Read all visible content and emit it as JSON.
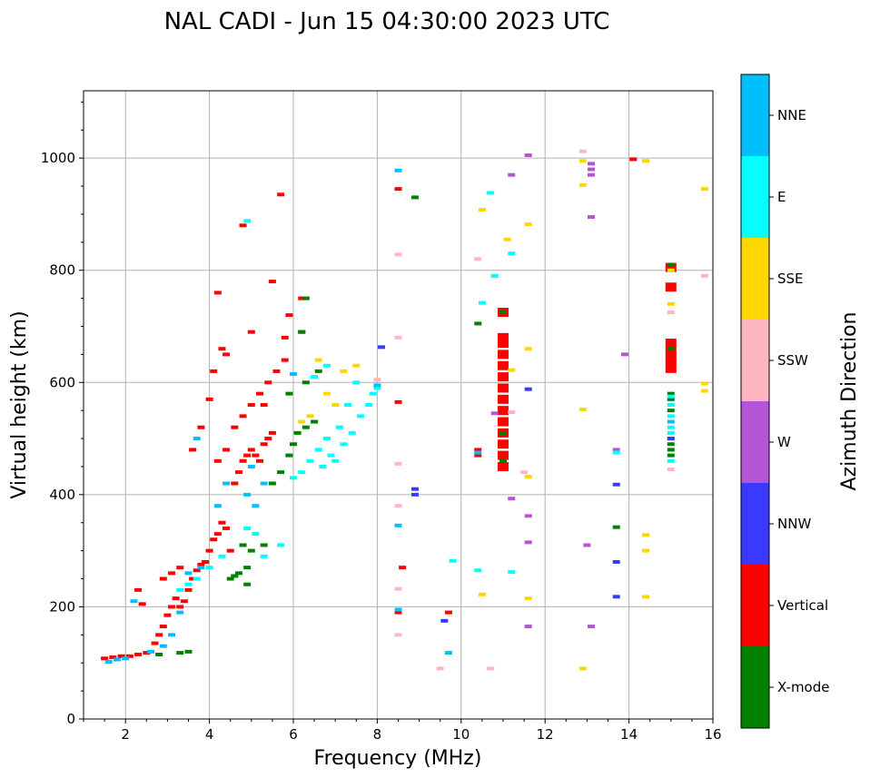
{
  "chart_data": {
    "type": "scatter",
    "title": "NAL CADI - Jun 15 04:30:00 2023 UTC",
    "xlabel": "Frequency (MHz)",
    "ylabel": "Virtual height (km)",
    "xlim": [
      1,
      16
    ],
    "ylim": [
      0,
      1120
    ],
    "xticks": [
      2,
      4,
      6,
      8,
      10,
      12,
      14,
      16
    ],
    "yticks": [
      0,
      200,
      400,
      600,
      800,
      1000
    ],
    "grid": true,
    "colorbar": {
      "label": "Azimuth Direction",
      "categories": [
        {
          "name": "X-mode",
          "color": "#008000"
        },
        {
          "name": "Vertical",
          "color": "#ff0000"
        },
        {
          "name": "NNW",
          "color": "#3a3aff"
        },
        {
          "name": "W",
          "color": "#b455d8"
        },
        {
          "name": "SSW",
          "color": "#ffb6c1"
        },
        {
          "name": "SSE",
          "color": "#ffd700"
        },
        {
          "name": "E",
          "color": "#00ffff"
        },
        {
          "name": "NNE",
          "color": "#00bfff"
        }
      ]
    },
    "series": [
      {
        "name": "Vertical",
        "color": "#ff0000",
        "points": [
          [
            1.5,
            108
          ],
          [
            1.7,
            110
          ],
          [
            1.9,
            112
          ],
          [
            2.1,
            112
          ],
          [
            2.3,
            115
          ],
          [
            2.5,
            118
          ],
          [
            2.7,
            135
          ],
          [
            2.8,
            150
          ],
          [
            2.9,
            165
          ],
          [
            3.0,
            185
          ],
          [
            3.1,
            200
          ],
          [
            3.2,
            215
          ],
          [
            3.3,
            200
          ],
          [
            3.4,
            210
          ],
          [
            3.5,
            230
          ],
          [
            3.6,
            250
          ],
          [
            3.7,
            265
          ],
          [
            3.8,
            275
          ],
          [
            3.9,
            280
          ],
          [
            4.0,
            300
          ],
          [
            4.1,
            320
          ],
          [
            4.2,
            330
          ],
          [
            4.3,
            350
          ],
          [
            4.4,
            340
          ],
          [
            4.5,
            300
          ],
          [
            4.6,
            420
          ],
          [
            4.7,
            440
          ],
          [
            4.8,
            460
          ],
          [
            4.9,
            470
          ],
          [
            5.0,
            480
          ],
          [
            5.1,
            470
          ],
          [
            5.2,
            460
          ],
          [
            5.3,
            490
          ],
          [
            5.4,
            500
          ],
          [
            5.5,
            510
          ],
          [
            4.2,
            460
          ],
          [
            4.4,
            480
          ],
          [
            4.6,
            520
          ],
          [
            4.8,
            540
          ],
          [
            5.0,
            560
          ],
          [
            5.2,
            580
          ],
          [
            5.4,
            600
          ],
          [
            5.6,
            620
          ],
          [
            5.8,
            640
          ],
          [
            4.0,
            570
          ],
          [
            4.1,
            620
          ],
          [
            4.3,
            660
          ],
          [
            4.4,
            650
          ],
          [
            4.2,
            760
          ],
          [
            5.5,
            780
          ],
          [
            6.2,
            750
          ],
          [
            5.0,
            690
          ],
          [
            5.8,
            680
          ],
          [
            6.2,
            690
          ],
          [
            2.3,
            230
          ],
          [
            2.4,
            205
          ],
          [
            3.6,
            480
          ],
          [
            3.8,
            520
          ],
          [
            4.8,
            880
          ],
          [
            5.7,
            935
          ],
          [
            2.9,
            250
          ],
          [
            3.1,
            260
          ],
          [
            3.3,
            270
          ],
          [
            8.5,
            565
          ],
          [
            8.5,
            945
          ],
          [
            8.6,
            270
          ],
          [
            8.5,
            190
          ],
          [
            9.7,
            190
          ],
          [
            10.4,
            480
          ],
          [
            10.4,
            470
          ],
          [
            14.1,
            998
          ],
          [
            5.9,
            720
          ],
          [
            5.3,
            560
          ]
        ]
      },
      {
        "name": "Vertical-bars",
        "color": "#ff0000",
        "points": [
          [
            11.0,
            450
          ],
          [
            11.0,
            470
          ],
          [
            11.0,
            490
          ],
          [
            11.0,
            510
          ],
          [
            11.0,
            530
          ],
          [
            11.0,
            550
          ],
          [
            11.0,
            570
          ],
          [
            11.0,
            590
          ],
          [
            11.0,
            610
          ],
          [
            11.0,
            630
          ],
          [
            11.0,
            650
          ],
          [
            11.0,
            670
          ],
          [
            11.0,
            680
          ],
          [
            11.0,
            725
          ],
          [
            15.0,
            625
          ],
          [
            15.0,
            640
          ],
          [
            15.0,
            655
          ],
          [
            15.0,
            670
          ],
          [
            15.0,
            770
          ],
          [
            15.0,
            805
          ]
        ]
      },
      {
        "name": "X-mode",
        "color": "#008000",
        "points": [
          [
            2.8,
            115
          ],
          [
            3.3,
            118
          ],
          [
            3.5,
            120
          ],
          [
            4.5,
            250
          ],
          [
            4.6,
            255
          ],
          [
            4.7,
            260
          ],
          [
            4.9,
            270
          ],
          [
            5.0,
            300
          ],
          [
            5.3,
            310
          ],
          [
            4.8,
            310
          ],
          [
            5.5,
            420
          ],
          [
            5.7,
            440
          ],
          [
            5.9,
            470
          ],
          [
            6.0,
            490
          ],
          [
            6.1,
            510
          ],
          [
            6.3,
            520
          ],
          [
            6.5,
            530
          ],
          [
            5.9,
            580
          ],
          [
            6.3,
            600
          ],
          [
            6.6,
            620
          ],
          [
            6.2,
            690
          ],
          [
            6.3,
            750
          ],
          [
            4.9,
            240
          ],
          [
            8.9,
            930
          ],
          [
            10.4,
            705
          ],
          [
            11.0,
            460
          ],
          [
            11.0,
            510
          ],
          [
            13.7,
            342
          ],
          [
            15.0,
            470
          ],
          [
            15.0,
            480
          ],
          [
            15.0,
            490
          ],
          [
            15.0,
            500
          ],
          [
            15.0,
            550
          ],
          [
            15.0,
            570
          ],
          [
            15.0,
            580
          ],
          [
            15.0,
            660
          ],
          [
            11.0,
            725
          ],
          [
            15.0,
            810
          ]
        ]
      },
      {
        "name": "NNW",
        "color": "#3a3aff",
        "points": [
          [
            8.9,
            400
          ],
          [
            8.9,
            410
          ],
          [
            9.6,
            175
          ],
          [
            13.7,
            280
          ],
          [
            13.7,
            418
          ],
          [
            13.7,
            218
          ],
          [
            15.0,
            500
          ],
          [
            8.1,
            663
          ],
          [
            11.6,
            588
          ]
        ]
      },
      {
        "name": "W",
        "color": "#b455d8",
        "points": [
          [
            13.1,
            980
          ],
          [
            13.1,
            970
          ],
          [
            13.1,
            990
          ],
          [
            13.1,
            895
          ],
          [
            13.9,
            650
          ],
          [
            13.7,
            480
          ],
          [
            13.0,
            310
          ],
          [
            13.1,
            165
          ],
          [
            11.6,
            1005
          ],
          [
            11.2,
            970
          ],
          [
            10.8,
            545
          ],
          [
            11.2,
            393
          ],
          [
            11.6,
            362
          ],
          [
            11.6,
            315
          ],
          [
            11.6,
            165
          ]
        ]
      },
      {
        "name": "SSW",
        "color": "#ffb6c1",
        "points": [
          [
            8.5,
            828
          ],
          [
            8.5,
            680
          ],
          [
            8.5,
            455
          ],
          [
            8.5,
            380
          ],
          [
            8.5,
            232
          ],
          [
            8.5,
            150
          ],
          [
            9.5,
            90
          ],
          [
            10.7,
            90
          ],
          [
            12.9,
            1012
          ],
          [
            15.0,
            725
          ],
          [
            15.0,
            445
          ],
          [
            15.8,
            790
          ],
          [
            8.0,
            605
          ],
          [
            10.4,
            820
          ],
          [
            11.2,
            547
          ],
          [
            11.5,
            440
          ]
        ]
      },
      {
        "name": "SSE",
        "color": "#ffd700",
        "points": [
          [
            6.6,
            640
          ],
          [
            6.8,
            580
          ],
          [
            7.0,
            560
          ],
          [
            7.2,
            620
          ],
          [
            7.5,
            630
          ],
          [
            6.2,
            530
          ],
          [
            6.4,
            540
          ],
          [
            10.5,
            908
          ],
          [
            11.1,
            855
          ],
          [
            11.6,
            882
          ],
          [
            11.6,
            660
          ],
          [
            11.2,
            622
          ],
          [
            12.9,
            995
          ],
          [
            12.9,
            952
          ],
          [
            12.9,
            552
          ],
          [
            12.9,
            90
          ],
          [
            14.4,
            995
          ],
          [
            14.4,
            328
          ],
          [
            14.4,
            300
          ],
          [
            14.4,
            218
          ],
          [
            15.0,
            800
          ],
          [
            15.0,
            740
          ],
          [
            15.8,
            945
          ],
          [
            15.8,
            598
          ],
          [
            15.8,
            585
          ],
          [
            11.6,
            215
          ],
          [
            11.6,
            432
          ],
          [
            10.5,
            222
          ]
        ]
      },
      {
        "name": "E",
        "color": "#00ffff",
        "points": [
          [
            3.3,
            230
          ],
          [
            3.5,
            240
          ],
          [
            3.7,
            250
          ],
          [
            4.0,
            270
          ],
          [
            4.3,
            290
          ],
          [
            4.9,
            340
          ],
          [
            5.1,
            330
          ],
          [
            5.3,
            290
          ],
          [
            5.7,
            310
          ],
          [
            6.0,
            430
          ],
          [
            6.2,
            440
          ],
          [
            6.4,
            460
          ],
          [
            6.6,
            480
          ],
          [
            6.8,
            500
          ],
          [
            7.0,
            460
          ],
          [
            7.2,
            490
          ],
          [
            7.4,
            510
          ],
          [
            7.6,
            540
          ],
          [
            7.8,
            560
          ],
          [
            7.9,
            580
          ],
          [
            6.7,
            450
          ],
          [
            6.9,
            470
          ],
          [
            7.1,
            520
          ],
          [
            7.3,
            560
          ],
          [
            7.5,
            600
          ],
          [
            6.5,
            610
          ],
          [
            6.8,
            630
          ],
          [
            8.0,
            590
          ],
          [
            10.7,
            938
          ],
          [
            10.8,
            790
          ],
          [
            10.5,
            742
          ],
          [
            11.2,
            830
          ],
          [
            11.2,
            262
          ],
          [
            9.8,
            282
          ],
          [
            10.4,
            265
          ],
          [
            13.7,
            475
          ],
          [
            15.0,
            460
          ],
          [
            15.0,
            510
          ],
          [
            15.0,
            520
          ],
          [
            15.0,
            540
          ],
          [
            15.0,
            560
          ],
          [
            15.0,
            575
          ],
          [
            4.9,
            888
          ]
        ]
      },
      {
        "name": "NNE",
        "color": "#00bfff",
        "points": [
          [
            1.6,
            102
          ],
          [
            1.8,
            106
          ],
          [
            2.0,
            108
          ],
          [
            2.6,
            120
          ],
          [
            2.9,
            130
          ],
          [
            3.1,
            150
          ],
          [
            3.3,
            190
          ],
          [
            3.5,
            260
          ],
          [
            3.8,
            270
          ],
          [
            4.2,
            380
          ],
          [
            4.4,
            420
          ],
          [
            4.9,
            400
          ],
          [
            5.1,
            380
          ],
          [
            5.3,
            420
          ],
          [
            6.0,
            615
          ],
          [
            3.7,
            500
          ],
          [
            8.5,
            978
          ],
          [
            8.5,
            345
          ],
          [
            8.5,
            195
          ],
          [
            9.7,
            118
          ],
          [
            10.4,
            475
          ],
          [
            8.0,
            595
          ],
          [
            15.0,
            530
          ],
          [
            2.2,
            210
          ],
          [
            5.0,
            450
          ]
        ]
      }
    ]
  }
}
